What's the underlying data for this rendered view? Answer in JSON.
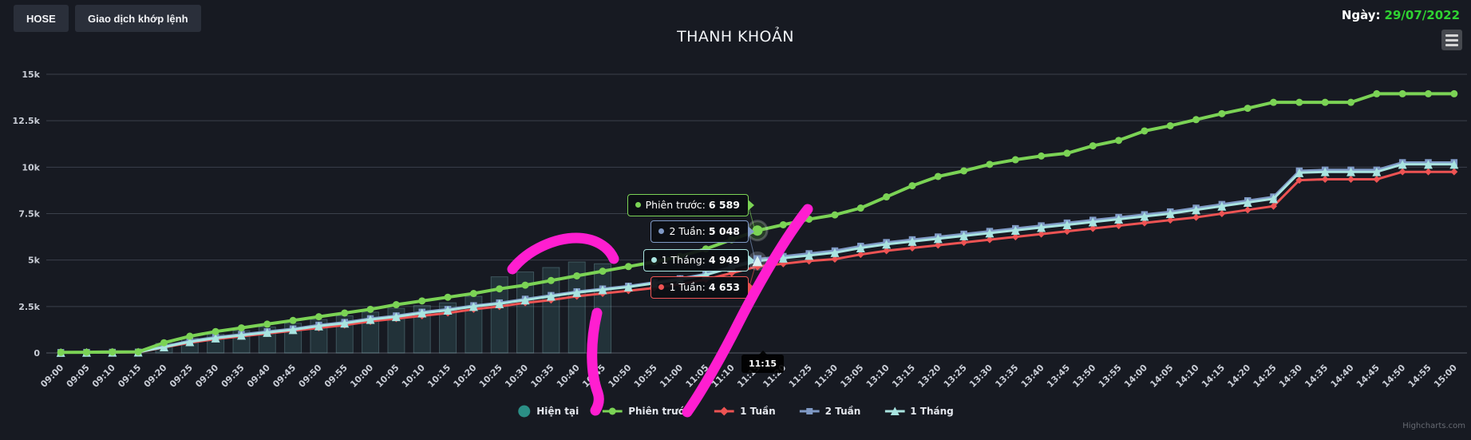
{
  "header": {
    "buttons": [
      {
        "label": "HOSE"
      },
      {
        "label": "Giao dịch khớp lệnh"
      }
    ],
    "date_label": "Ngày:",
    "date_value": "29/07/2022"
  },
  "chart_data": {
    "type": "line",
    "title": "THANH KHOẢN",
    "grid": true,
    "legend_position": "bottom",
    "ylim": [
      0,
      15000
    ],
    "yticks": {
      "values": [
        0,
        2500,
        5000,
        7500,
        10000,
        12500,
        15000
      ],
      "labels": [
        "0",
        "2.5k",
        "5k",
        "7.5k",
        "10k",
        "12.5k",
        "15k"
      ]
    },
    "categories": [
      "09:00",
      "09:05",
      "09:10",
      "09:15",
      "09:20",
      "09:25",
      "09:30",
      "09:35",
      "09:40",
      "09:45",
      "09:50",
      "09:55",
      "10:00",
      "10:05",
      "10:10",
      "10:15",
      "10:20",
      "10:25",
      "10:30",
      "10:35",
      "10:40",
      "10:45",
      "10:50",
      "10:55",
      "11:00",
      "11:05",
      "11:10",
      "11:15",
      "11:20",
      "11:25",
      "11:30",
      "13:05",
      "13:10",
      "13:15",
      "13:20",
      "13:25",
      "13:30",
      "13:35",
      "13:40",
      "13:45",
      "13:50",
      "13:55",
      "14:00",
      "14:05",
      "14:10",
      "14:15",
      "14:20",
      "14:25",
      "14:30",
      "14:35",
      "14:40",
      "14:45",
      "14:50",
      "14:55",
      "15:00"
    ],
    "series": [
      {
        "name": "Hiện tại",
        "slug": "hien-tai",
        "type": "column",
        "marker": "circle",
        "color": "#2b8f86",
        "bar_fill": "rgba(86,162,168,0.18)",
        "bar_stroke": "rgba(150,210,215,0.28)",
        "values": [
          0,
          0,
          0,
          10,
          520,
          800,
          1000,
          1200,
          1400,
          1600,
          1800,
          2000,
          2200,
          2400,
          2550,
          2700,
          3050,
          4100,
          4360,
          4600,
          4900,
          4800,
          null,
          null,
          null,
          null,
          null,
          null,
          null,
          null,
          null,
          null,
          null,
          null,
          null,
          null,
          null,
          null,
          null,
          null,
          null,
          null,
          null,
          null,
          null,
          null,
          null,
          null,
          null,
          null,
          null,
          null,
          null,
          null,
          null
        ]
      },
      {
        "name": "Phiên trước",
        "slug": "phien-truoc",
        "type": "line",
        "marker": "circle",
        "color": "#7bd355",
        "values": [
          30,
          40,
          50,
          60,
          550,
          900,
          1150,
          1350,
          1550,
          1750,
          1950,
          2150,
          2350,
          2600,
          2800,
          3000,
          3200,
          3450,
          3650,
          3900,
          4150,
          4400,
          4650,
          4900,
          5200,
          5600,
          6100,
          6589,
          6900,
          7200,
          7430,
          7800,
          8400,
          9000,
          9500,
          9800,
          10150,
          10400,
          10600,
          10750,
          11150,
          11440,
          11950,
          12230,
          12560,
          12880,
          13170,
          13490,
          13490,
          13490,
          13490,
          13950,
          13950,
          13950,
          13950
        ]
      },
      {
        "name": "1 Tuần",
        "slug": "1-tuan",
        "type": "line",
        "marker": "diamond",
        "color": "#ed5353",
        "values": [
          20,
          25,
          30,
          40,
          300,
          550,
          750,
          900,
          1050,
          1200,
          1350,
          1500,
          1700,
          1850,
          2000,
          2150,
          2350,
          2500,
          2700,
          2850,
          3050,
          3200,
          3350,
          3500,
          3700,
          3950,
          4300,
          4653,
          4800,
          4950,
          5050,
          5300,
          5500,
          5650,
          5800,
          5950,
          6100,
          6250,
          6400,
          6550,
          6700,
          6850,
          7000,
          7150,
          7300,
          7500,
          7700,
          7900,
          9300,
          9350,
          9350,
          9350,
          9750,
          9750,
          9750
        ]
      },
      {
        "name": "2 Tuần",
        "slug": "2-tuan",
        "type": "line",
        "marker": "square",
        "color": "#7f99c5",
        "values": [
          30,
          35,
          40,
          50,
          350,
          650,
          850,
          1000,
          1150,
          1300,
          1500,
          1650,
          1850,
          2000,
          2200,
          2350,
          2550,
          2700,
          2900,
          3100,
          3300,
          3450,
          3600,
          3800,
          4000,
          4250,
          4650,
          5048,
          5200,
          5350,
          5500,
          5750,
          5950,
          6100,
          6250,
          6400,
          6550,
          6700,
          6850,
          7000,
          7150,
          7300,
          7450,
          7600,
          7800,
          8000,
          8200,
          8400,
          9800,
          9850,
          9850,
          9850,
          10250,
          10250,
          10250
        ]
      },
      {
        "name": "1 Tháng",
        "slug": "1-thang",
        "type": "line",
        "marker": "triangle",
        "color": "#a9e4e0",
        "values": [
          25,
          30,
          35,
          45,
          320,
          600,
          800,
          950,
          1100,
          1250,
          1450,
          1600,
          1800,
          1950,
          2150,
          2300,
          2500,
          2650,
          2850,
          3050,
          3250,
          3400,
          3550,
          3750,
          3950,
          4200,
          4600,
          4949,
          5100,
          5250,
          5400,
          5650,
          5850,
          6000,
          6150,
          6300,
          6450,
          6600,
          6750,
          6900,
          7050,
          7200,
          7350,
          7500,
          7700,
          7900,
          8100,
          8300,
          9700,
          9750,
          9750,
          9750,
          10150,
          10150,
          10150
        ]
      }
    ]
  },
  "tooltip": {
    "x_label": "11:15",
    "items": [
      {
        "label": "Phiên trước:",
        "value": "6 589",
        "color": "#7bd355"
      },
      {
        "label": "2 Tuần:",
        "value": "5 048",
        "color": "#7f99c5"
      },
      {
        "label": "1 Tháng:",
        "value": "4 949",
        "color": "#a9e4e0"
      },
      {
        "label": "1 Tuần:",
        "value": "4 653",
        "color": "#ed5353"
      }
    ]
  },
  "annotations": {
    "color": "#ff1ed0",
    "width": 13,
    "paths": [
      "M642,337 C662,312 696,298 722,298 C744,298 762,308 769,324",
      "M748,392 C739,430 740,468 749,492 C752,501 749,509 746,514",
      "M1012,262 C985,296 952,352 925,405 C905,445 878,492 861,516"
    ]
  },
  "credits": "Highcharts.com"
}
